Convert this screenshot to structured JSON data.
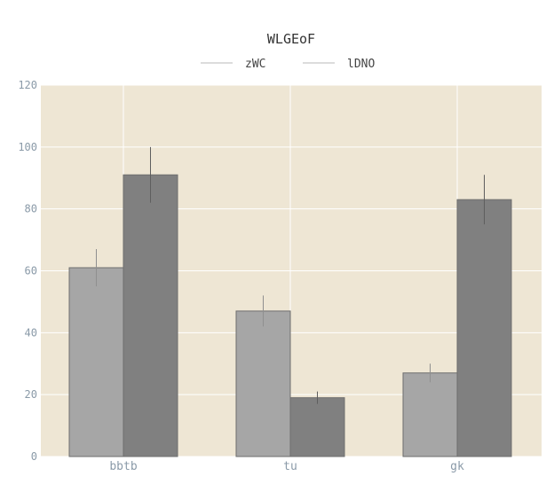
{
  "chart_data": {
    "type": "bar",
    "title": "WLGEoF",
    "xlabel": "",
    "ylabel": "",
    "categories": [
      "bbtb",
      "tu",
      "gk"
    ],
    "series": [
      {
        "name": "zWC",
        "values": [
          61,
          47,
          27
        ],
        "errors": [
          6,
          5,
          3
        ],
        "color": "#a6a6a6"
      },
      {
        "name": "lDNO",
        "values": [
          91,
          19,
          83
        ],
        "errors": [
          9,
          2,
          8
        ],
        "color": "#808080"
      }
    ],
    "ylim": [
      0,
      120
    ],
    "yticks": [
      0,
      20,
      40,
      60,
      80,
      100,
      120
    ],
    "grid": true,
    "legend_position": "top-center",
    "plot_background": "#eee6d4"
  }
}
